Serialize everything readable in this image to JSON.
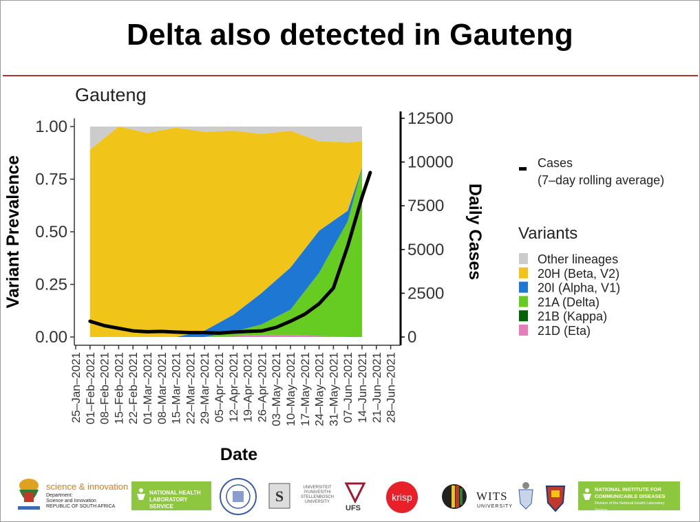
{
  "slide": {
    "title": "Delta also detected in Gauteng"
  },
  "chart_data": {
    "type": "area",
    "title": "Gauteng",
    "xlabel": "Date",
    "ylabel": "Variant Prevalence",
    "y2label": "Daily Cases",
    "ylim": [
      0,
      1
    ],
    "y2lim": [
      0,
      12500
    ],
    "yticks": [
      "0.00",
      "0.25",
      "0.50",
      "0.75",
      "1.00"
    ],
    "y2ticks": [
      "0",
      "2500",
      "5000",
      "7500",
      "10000",
      "12500"
    ],
    "xticks": [
      "25–Jan–2021",
      "01–Feb–2021",
      "08–Feb–2021",
      "15–Feb–2021",
      "22–Feb–2021",
      "01–Mar–2021",
      "08–Mar–2021",
      "15–Mar–2021",
      "22–Mar–2021",
      "29–Mar–2021",
      "05–Apr–2021",
      "12–Apr–2021",
      "19–Apr–2021",
      "26–Apr–2021",
      "03–May–2021",
      "10–May–2021",
      "17–May–2021",
      "24–May–2021",
      "31–May–2021",
      "07–Jun–2021",
      "14–Jun–2021",
      "21–Jun–2021",
      "28–Jun–2021"
    ],
    "x": [
      "01–Feb–2021",
      "15–Feb–2021",
      "01–Mar–2021",
      "15–Mar–2021",
      "29–Mar–2021",
      "12–Apr–2021",
      "26–Apr–2021",
      "10–May–2021",
      "24–May–2021",
      "07–Jun–2021",
      "14–Jun–2021"
    ],
    "series": [
      {
        "name": "21D (Eta)",
        "color": "#e87dbb",
        "values": [
          0,
          0,
          0,
          0,
          0,
          0.005,
          0.01,
          0.01,
          0.005,
          0,
          0
        ]
      },
      {
        "name": "21B (Kappa)",
        "color": "#006400",
        "values": [
          0,
          0,
          0,
          0,
          0,
          0,
          0,
          0,
          0,
          0,
          0
        ]
      },
      {
        "name": "21A (Delta)",
        "color": "#66cc22",
        "values": [
          0,
          0,
          0,
          0,
          0,
          0.02,
          0.05,
          0.12,
          0.3,
          0.55,
          0.8
        ]
      },
      {
        "name": "20I (Alpha, V1)",
        "color": "#1f77d4",
        "values": [
          0,
          0,
          0,
          0,
          0.03,
          0.08,
          0.15,
          0.2,
          0.2,
          0.05,
          0.005
        ]
      },
      {
        "name": "20H (Beta, V2)",
        "color": "#f0c419",
        "values": [
          0.89,
          1.0,
          0.97,
          0.995,
          0.945,
          0.875,
          0.755,
          0.65,
          0.425,
          0.325,
          0.125
        ]
      },
      {
        "name": "Other lineages",
        "color": "#cccccc",
        "values": [
          0.11,
          0.0,
          0.03,
          0.005,
          0.025,
          0.02,
          0.035,
          0.02,
          0.07,
          0.075,
          0.07
        ]
      }
    ],
    "cases": {
      "name": "Cases\n(7–day rolling average)",
      "color": "#000000",
      "points": [
        [
          "01–Feb–2021",
          900
        ],
        [
          "08–Feb–2021",
          650
        ],
        [
          "15–Feb–2021",
          500
        ],
        [
          "22–Feb–2021",
          350
        ],
        [
          "01–Mar–2021",
          300
        ],
        [
          "08–Mar–2021",
          320
        ],
        [
          "15–Mar–2021",
          280
        ],
        [
          "22–Mar–2021",
          250
        ],
        [
          "29–Mar–2021",
          250
        ],
        [
          "05–Apr–2021",
          220
        ],
        [
          "12–Apr–2021",
          280
        ],
        [
          "19–Apr–2021",
          320
        ],
        [
          "26–Apr–2021",
          350
        ],
        [
          "03–May–2021",
          550
        ],
        [
          "10–May–2021",
          900
        ],
        [
          "17–May–2021",
          1300
        ],
        [
          "24–May–2021",
          1900
        ],
        [
          "31–May–2021",
          2800
        ],
        [
          "07–Jun–2021",
          5200
        ],
        [
          "14–Jun–2021",
          8000
        ],
        [
          "18–Jun–2021",
          9400
        ]
      ]
    },
    "legend": {
      "position": "right",
      "cases_label_line1": "Cases",
      "cases_label_line2": "(7–day rolling average)",
      "variants_title": "Variants",
      "items": [
        {
          "label": "Other lineages",
          "color": "#cccccc"
        },
        {
          "label": "20H (Beta, V2)",
          "color": "#f0c419"
        },
        {
          "label": "20I (Alpha, V1)",
          "color": "#1f77d4"
        },
        {
          "label": "21A (Delta)",
          "color": "#66cc22"
        },
        {
          "label": "21B (Kappa)",
          "color": "#006400"
        },
        {
          "label": "21D (Eta)",
          "color": "#e87dbb"
        }
      ]
    },
    "grid": false
  },
  "logos": {
    "dsi_name": "science & innovation",
    "dsi_sub": "Department:\nScience and Innovation\nREPUBLIC OF SOUTH AFRICA",
    "nhls": "NATIONAL HEALTH\nLABORATORY SERVICE",
    "su": "UNIVERSITEIT\nIYUNIVESITHI\nSTELLENBOSCH\nUNIVERSITY",
    "ufs": "UFS",
    "krisp": "krisp",
    "wits": "WITS",
    "wits_sub": "UNIVERSITY",
    "nicd": "NATIONAL INSTITUTE FOR\nCOMMUNICABLE DISEASES",
    "nicd_sub": "Division of the National Health Laboratory Service"
  }
}
